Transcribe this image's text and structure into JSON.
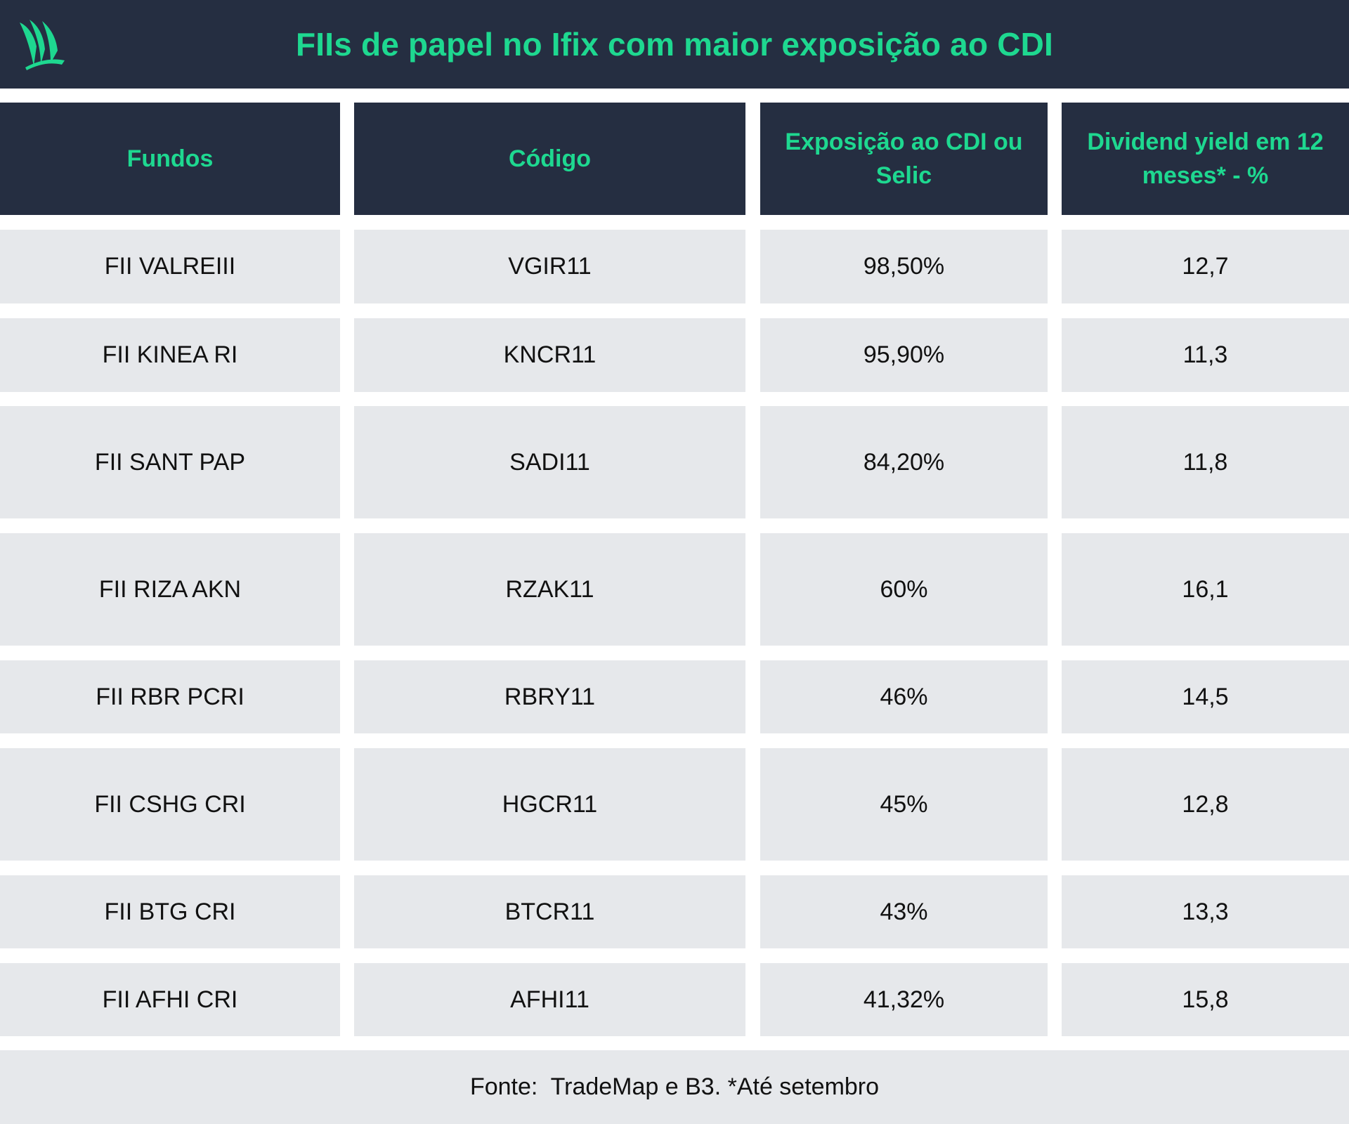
{
  "title": "FIIs de papel no Ifix com maior exposição ao CDI",
  "colors": {
    "header_bg": "#252e41",
    "accent": "#1ed890",
    "row_bg": "#e6e8eb",
    "text": "#111111"
  },
  "logo_icon": "sail-logo-icon",
  "headers": [
    "Fundos",
    "Código",
    "Exposição ao CDI ou Selic",
    "Dividend yield em 12 meses* - %"
  ],
  "rows": [
    [
      "FII VALREIII",
      "VGIR11",
      "98,50%",
      "12,7"
    ],
    [
      "FII KINEA RI",
      "KNCR11",
      "95,90%",
      "11,3"
    ],
    [
      "FII SANT PAP",
      "SADI11",
      "84,20%",
      "11,8"
    ],
    [
      "FII RIZA AKN",
      "RZAK11",
      "60%",
      "16,1"
    ],
    [
      "FII RBR PCRI",
      "RBRY11",
      "46%",
      "14,5"
    ],
    [
      "FII CSHG CRI",
      "HGCR11",
      "45%",
      "12,8"
    ],
    [
      "FII BTG CRI",
      "BTCR11",
      "43%",
      "13,3"
    ],
    [
      "FII AFHI CRI",
      "AFHI11",
      "41,32%",
      "15,8"
    ]
  ],
  "footer": "Fonte:  TradeMap e B3. *Até setembro"
}
